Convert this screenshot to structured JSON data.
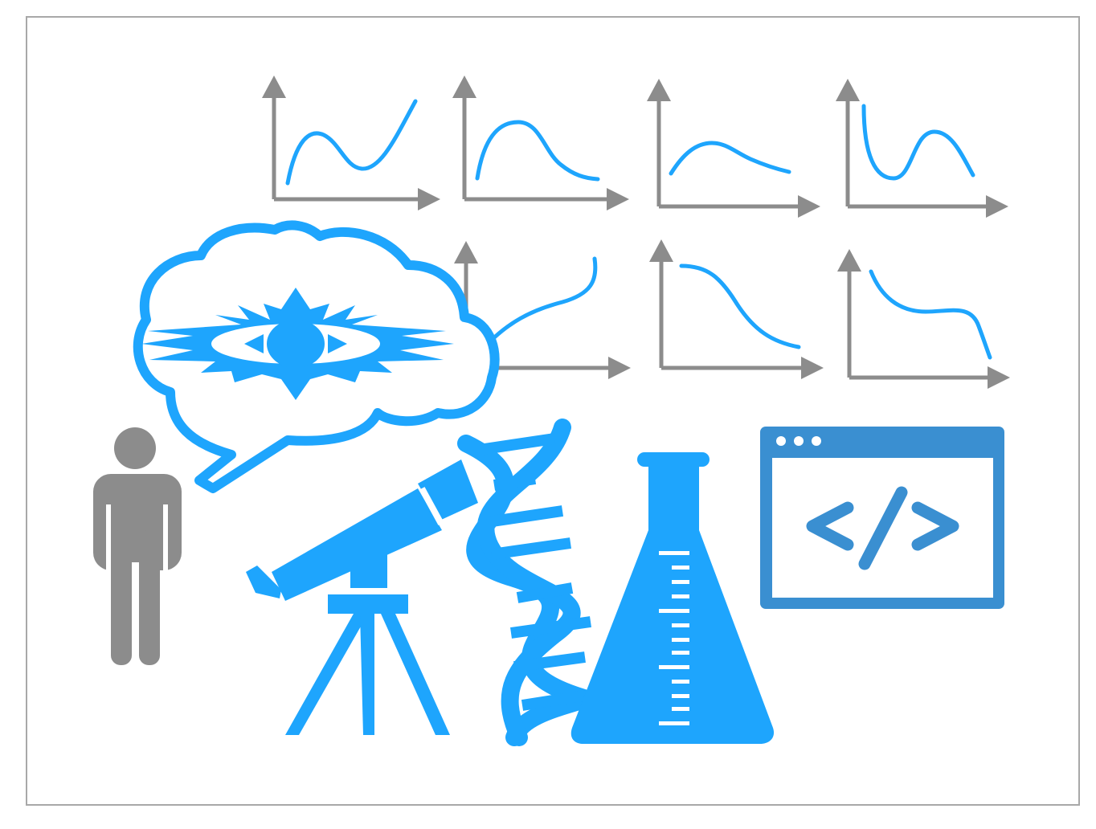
{
  "colors": {
    "accent": "#1ea5fd",
    "code_window": "#3a8fd1",
    "gray": "#8c8c8c",
    "frame": "#a8a8a8",
    "background": "#ffffff"
  },
  "icons": {
    "person": "person-icon",
    "thought_bubble": "thought-bubble-icon",
    "idea_burst": "idea-burst-icon",
    "telescope": "telescope-icon",
    "dna": "dna-icon",
    "flask": "flask-icon",
    "code_window": "code-window-icon",
    "chart": "line-chart-icon"
  },
  "code_window": {
    "glyph": "</>"
  },
  "charts": [
    {
      "curve": "wave-up"
    },
    {
      "curve": "peak-decay"
    },
    {
      "curve": "gentle-bump"
    },
    {
      "curve": "dip-peak"
    },
    {
      "curve": "rising"
    },
    {
      "curve": "falling"
    },
    {
      "curve": "shoulder-fall"
    }
  ]
}
